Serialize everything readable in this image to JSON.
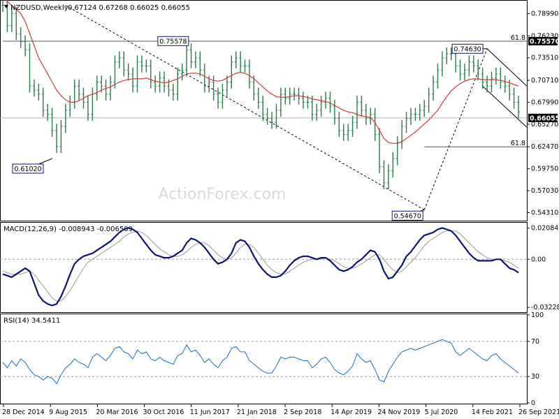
{
  "chart_data": [
    {
      "type": "bar",
      "panel": "price",
      "header": {
        "symbol": "NZDUSD,Weekly",
        "ohlc": "0.67124 0.67268 0.66025 0.66055"
      },
      "ylim": [
        0.534,
        0.805
      ],
      "yticks": [
        "0.78990",
        "0.76230",
        "0.73510",
        "0.70710",
        "0.67990",
        "0.65270",
        "0.62470",
        "0.59750",
        "0.57030",
        "0.54310"
      ],
      "ytick_values": [
        0.7899,
        0.7623,
        0.7351,
        0.7071,
        0.6799,
        0.6527,
        0.6247,
        0.5975,
        0.5703,
        0.5431
      ],
      "current_price": {
        "label": "0.66055",
        "value": 0.66055
      },
      "level_label": {
        "label": "0.75570",
        "value": 0.7557
      },
      "fib_levels": [
        {
          "label": "61.8",
          "value": 0.7557
        },
        {
          "label": "61.8",
          "value": 0.6247
        }
      ],
      "annotations": [
        {
          "label": "0.75578",
          "x": 38,
          "value": 0.75578
        },
        {
          "label": "0.74630",
          "x": 108,
          "value": 0.7463
        },
        {
          "label": "0.61020",
          "x": 11,
          "value": 0.6102
        },
        {
          "label": "0.54670",
          "x": 94,
          "value": 0.5467
        }
      ],
      "watermark": "ActionForex.com",
      "series": [
        {
          "type": "bar_ohlc",
          "values": [
            0.8,
            0.775,
            0.79,
            0.765,
            0.755,
            0.745,
            0.7,
            0.695,
            0.69,
            0.67,
            0.665,
            0.645,
            0.625,
            0.65,
            0.67,
            0.68,
            0.7,
            0.69,
            0.68,
            0.665,
            0.69,
            0.705,
            0.7,
            0.69,
            0.705,
            0.73,
            0.735,
            0.72,
            0.715,
            0.7,
            0.73,
            0.725,
            0.725,
            0.705,
            0.7,
            0.71,
            0.7,
            0.695,
            0.69,
            0.715,
            0.72,
            0.745,
            0.73,
            0.735,
            0.72,
            0.7,
            0.705,
            0.69,
            0.68,
            0.695,
            0.705,
            0.73,
            0.735,
            0.725,
            0.725,
            0.705,
            0.69,
            0.68,
            0.665,
            0.66,
            0.655,
            0.67,
            0.69,
            0.685,
            0.69,
            0.69,
            0.685,
            0.68,
            0.68,
            0.665,
            0.67,
            0.68,
            0.685,
            0.675,
            0.66,
            0.645,
            0.64,
            0.645,
            0.655,
            0.68,
            0.67,
            0.66,
            0.665,
            0.64,
            0.6,
            0.58,
            0.595,
            0.61,
            0.63,
            0.65,
            0.66,
            0.665,
            0.665,
            0.67,
            0.675,
            0.69,
            0.705,
            0.72,
            0.735,
            0.74,
            0.74,
            0.725,
            0.715,
            0.72,
            0.73,
            0.725,
            0.715,
            0.705,
            0.7,
            0.71,
            0.715,
            0.705,
            0.7,
            0.69,
            0.68,
            0.668
          ]
        },
        {
          "type": "moving_average",
          "values": [
            0.81,
            0.805,
            0.8,
            0.795,
            0.79,
            0.78,
            0.765,
            0.75,
            0.735,
            0.725,
            0.715,
            0.705,
            0.695,
            0.688,
            0.683,
            0.68,
            0.68,
            0.682,
            0.685,
            0.688,
            0.69,
            0.692,
            0.695,
            0.697,
            0.699,
            0.702,
            0.705,
            0.707,
            0.708,
            0.709,
            0.709,
            0.709,
            0.71,
            0.708,
            0.706,
            0.705,
            0.704,
            0.705,
            0.707,
            0.709,
            0.712,
            0.715,
            0.716,
            0.716,
            0.715,
            0.712,
            0.709,
            0.707,
            0.706,
            0.707,
            0.71,
            0.713,
            0.716,
            0.717,
            0.716,
            0.713,
            0.709,
            0.704,
            0.699,
            0.694,
            0.69,
            0.687,
            0.686,
            0.686,
            0.687,
            0.688,
            0.688,
            0.687,
            0.686,
            0.684,
            0.683,
            0.682,
            0.681,
            0.679,
            0.676,
            0.673,
            0.67,
            0.668,
            0.667,
            0.665,
            0.663,
            0.662,
            0.661,
            0.655,
            0.645,
            0.635,
            0.63,
            0.629,
            0.629,
            0.631,
            0.635,
            0.639,
            0.643,
            0.648,
            0.653,
            0.658,
            0.664,
            0.67,
            0.679,
            0.687,
            0.694,
            0.699,
            0.703,
            0.706,
            0.708,
            0.709,
            0.709,
            0.708,
            0.708,
            0.708,
            0.708,
            0.707,
            0.706,
            0.704,
            0.702,
            0.7
          ]
        }
      ]
    },
    {
      "type": "line",
      "panel": "macd",
      "header": "MACD(12,26,9) -0.008943 -0.006509",
      "ylim": [
        -0.035,
        0.024
      ],
      "yticks": [
        "0.02084",
        "0.00",
        "-0.032285"
      ],
      "ytick_values": [
        0.02084,
        0.0,
        -0.032285
      ],
      "series": [
        {
          "type": "macd_line",
          "values": [
            -0.01,
            -0.011,
            -0.012,
            -0.01,
            -0.008,
            -0.006,
            -0.008,
            -0.016,
            -0.024,
            -0.028,
            -0.03,
            -0.031,
            -0.03,
            -0.025,
            -0.018,
            -0.01,
            -0.003,
            0.0,
            0.002,
            0.003,
            0.004,
            0.006,
            0.008,
            0.01,
            0.012,
            0.015,
            0.018,
            0.02,
            0.021,
            0.02,
            0.018,
            0.014,
            0.01,
            0.006,
            0.003,
            0.002,
            0.001,
            0.001,
            0.002,
            0.004,
            0.006,
            0.011,
            0.014,
            0.013,
            0.011,
            0.008,
            0.004,
            0.0,
            -0.003,
            -0.002,
            0.0,
            0.004,
            0.011,
            0.013,
            0.012,
            0.008,
            0.002,
            -0.003,
            -0.007,
            -0.01,
            -0.012,
            -0.012,
            -0.011,
            -0.008,
            -0.004,
            -0.001,
            0.001,
            0.002,
            0.002,
            0.001,
            0.0,
            0.001,
            0.001,
            -0.001,
            -0.004,
            -0.007,
            -0.008,
            -0.007,
            -0.005,
            -0.002,
            0.0,
            0.003,
            0.006,
            0.005,
            0.0,
            -0.008,
            -0.013,
            -0.012,
            -0.008,
            -0.004,
            0.002,
            0.005,
            0.009,
            0.013,
            0.016,
            0.017,
            0.018,
            0.02,
            0.021,
            0.02,
            0.019,
            0.016,
            0.012,
            0.008,
            0.004,
            0.001,
            -0.001,
            -0.001,
            -0.001,
            -0.001,
            0.0,
            0.0,
            -0.003,
            -0.006,
            -0.007,
            -0.009
          ]
        },
        {
          "type": "signal_line",
          "values": [
            -0.008,
            -0.009,
            -0.01,
            -0.01,
            -0.01,
            -0.009,
            -0.008,
            -0.01,
            -0.014,
            -0.018,
            -0.022,
            -0.026,
            -0.028,
            -0.028,
            -0.025,
            -0.021,
            -0.016,
            -0.011,
            -0.006,
            -0.002,
            0.0,
            0.002,
            0.004,
            0.006,
            0.008,
            0.01,
            0.012,
            0.015,
            0.017,
            0.018,
            0.019,
            0.018,
            0.016,
            0.013,
            0.01,
            0.007,
            0.005,
            0.003,
            0.002,
            0.002,
            0.003,
            0.005,
            0.008,
            0.01,
            0.011,
            0.011,
            0.009,
            0.006,
            0.003,
            0.001,
            0.0,
            0.001,
            0.004,
            0.008,
            0.01,
            0.01,
            0.008,
            0.004,
            0.0,
            -0.004,
            -0.007,
            -0.009,
            -0.01,
            -0.01,
            -0.008,
            -0.006,
            -0.004,
            -0.002,
            -0.001,
            0.0,
            0.0,
            0.0,
            0.001,
            0.0,
            -0.001,
            -0.003,
            -0.005,
            -0.006,
            -0.006,
            -0.005,
            -0.003,
            -0.001,
            0.001,
            0.003,
            0.003,
            0.0,
            -0.004,
            -0.007,
            -0.009,
            -0.008,
            -0.005,
            -0.002,
            0.001,
            0.005,
            0.009,
            0.012,
            0.014,
            0.016,
            0.018,
            0.019,
            0.019,
            0.019,
            0.017,
            0.014,
            0.011,
            0.008,
            0.005,
            0.003,
            0.001,
            0.0,
            0.0,
            0.0,
            -0.001,
            -0.002,
            -0.004,
            -0.006
          ]
        }
      ]
    },
    {
      "type": "line",
      "panel": "rsi",
      "header": "RSI(14) 34.5411",
      "ylim": [
        0,
        100
      ],
      "yticks": [
        "100",
        "70",
        "30",
        "0"
      ],
      "ytick_values": [
        100,
        70,
        30,
        0
      ],
      "levels": [
        70,
        30
      ],
      "series": [
        {
          "type": "rsi_line",
          "values": [
            46,
            40,
            48,
            42,
            50,
            46,
            38,
            32,
            30,
            26,
            30,
            28,
            22,
            32,
            40,
            44,
            50,
            46,
            44,
            40,
            52,
            56,
            52,
            48,
            54,
            62,
            64,
            58,
            56,
            50,
            60,
            56,
            58,
            50,
            48,
            52,
            48,
            46,
            44,
            54,
            56,
            66,
            58,
            60,
            54,
            46,
            50,
            44,
            40,
            48,
            52,
            62,
            64,
            58,
            58,
            48,
            44,
            40,
            36,
            34,
            34,
            42,
            52,
            50,
            52,
            52,
            50,
            48,
            48,
            40,
            44,
            50,
            52,
            46,
            38,
            34,
            32,
            36,
            42,
            56,
            50,
            46,
            48,
            38,
            26,
            24,
            36,
            44,
            52,
            58,
            60,
            62,
            60,
            62,
            64,
            66,
            68,
            70,
            72,
            70,
            68,
            58,
            54,
            58,
            62,
            58,
            54,
            50,
            48,
            54,
            56,
            50,
            46,
            42,
            38,
            34
          ]
        }
      ]
    }
  ],
  "x_axis": {
    "ticks": [
      "28 Dec 2014",
      "9 Aug 2015",
      "20 Mar 2016",
      "30 Oct 2016",
      "11 Jun 2017",
      "21 Jan 2018",
      "2 Sep 2018",
      "14 Apr 2019",
      "24 Nov 2019",
      "5 Jul 2020",
      "14 Feb 2021",
      "26 Sep 2021"
    ]
  },
  "colors": {
    "bars": "#2d7a4a",
    "ma": "#d43a3a",
    "macd": "#0b1573",
    "signal": "#9a9a9a",
    "rsi": "#1a6fc4",
    "current_box": "#000000",
    "annotation_border": "#0b1573"
  }
}
